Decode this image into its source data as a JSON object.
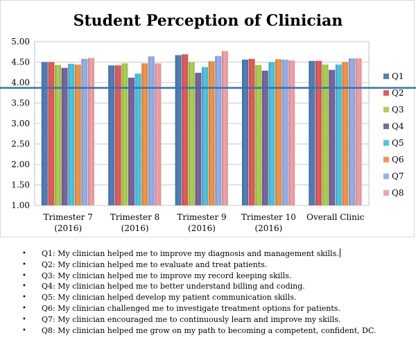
{
  "chart_data": {
    "type": "bar",
    "title": "Student Perception of Clinician",
    "categories": [
      "Trimester 7\n(2016)",
      "Trimester 8\n(2016)",
      "Trimester 9\n(2016)",
      "Trimester 10\n(2016)",
      "Overall Clinic"
    ],
    "ylim": [
      1.0,
      5.0
    ],
    "yticks": [
      "1.00",
      "1.50",
      "2.00",
      "2.50",
      "3.00",
      "3.50",
      "4.00",
      "4.50",
      "5.00"
    ],
    "grid": true,
    "legend_position": "right",
    "reference_line": {
      "y": 3.87,
      "color": "#2e75b6"
    },
    "series": [
      {
        "name": "Q1",
        "color": "#4f81bd",
        "values": [
          4.5,
          4.42,
          4.67,
          4.56,
          4.53
        ]
      },
      {
        "name": "Q2",
        "color": "#e85c5c",
        "values": [
          4.5,
          4.42,
          4.69,
          4.58,
          4.53
        ]
      },
      {
        "name": "Q3",
        "color": "#a8d54c",
        "values": [
          4.43,
          4.47,
          4.5,
          4.43,
          4.44
        ]
      },
      {
        "name": "Q4",
        "color": "#8064a2",
        "values": [
          4.36,
          4.12,
          4.24,
          4.29,
          4.31
        ]
      },
      {
        "name": "Q5",
        "color": "#4bc8e6",
        "values": [
          4.46,
          4.22,
          4.38,
          4.5,
          4.44
        ]
      },
      {
        "name": "Q6",
        "color": "#f79646",
        "values": [
          4.44,
          4.47,
          4.52,
          4.57,
          4.5
        ]
      },
      {
        "name": "Q7",
        "color": "#95b3f0",
        "values": [
          4.58,
          4.64,
          4.65,
          4.56,
          4.59
        ]
      },
      {
        "name": "Q8",
        "color": "#f5a3a8",
        "values": [
          4.6,
          4.47,
          4.77,
          4.54,
          4.59
        ]
      }
    ]
  },
  "notes": [
    "Q1: My clinician helped me to improve my diagnosis and management skills.",
    "Q2: My clinician helped me to evaluate and treat patients.",
    "Q3: My clinician helped me to improve my record keeping skills.",
    "Q4: My clinician helped me to better understand billing and coding.",
    "Q5: My clinician helped develop my patient communication skills.",
    "Q6: My clinician challenged me to investigate treatment options for patients.",
    "Q7: My clinician encouraged me to continuously learn and improve my skills.",
    "Q8: My clinician helped me grow on my path to becoming a competent, confident, DC."
  ]
}
